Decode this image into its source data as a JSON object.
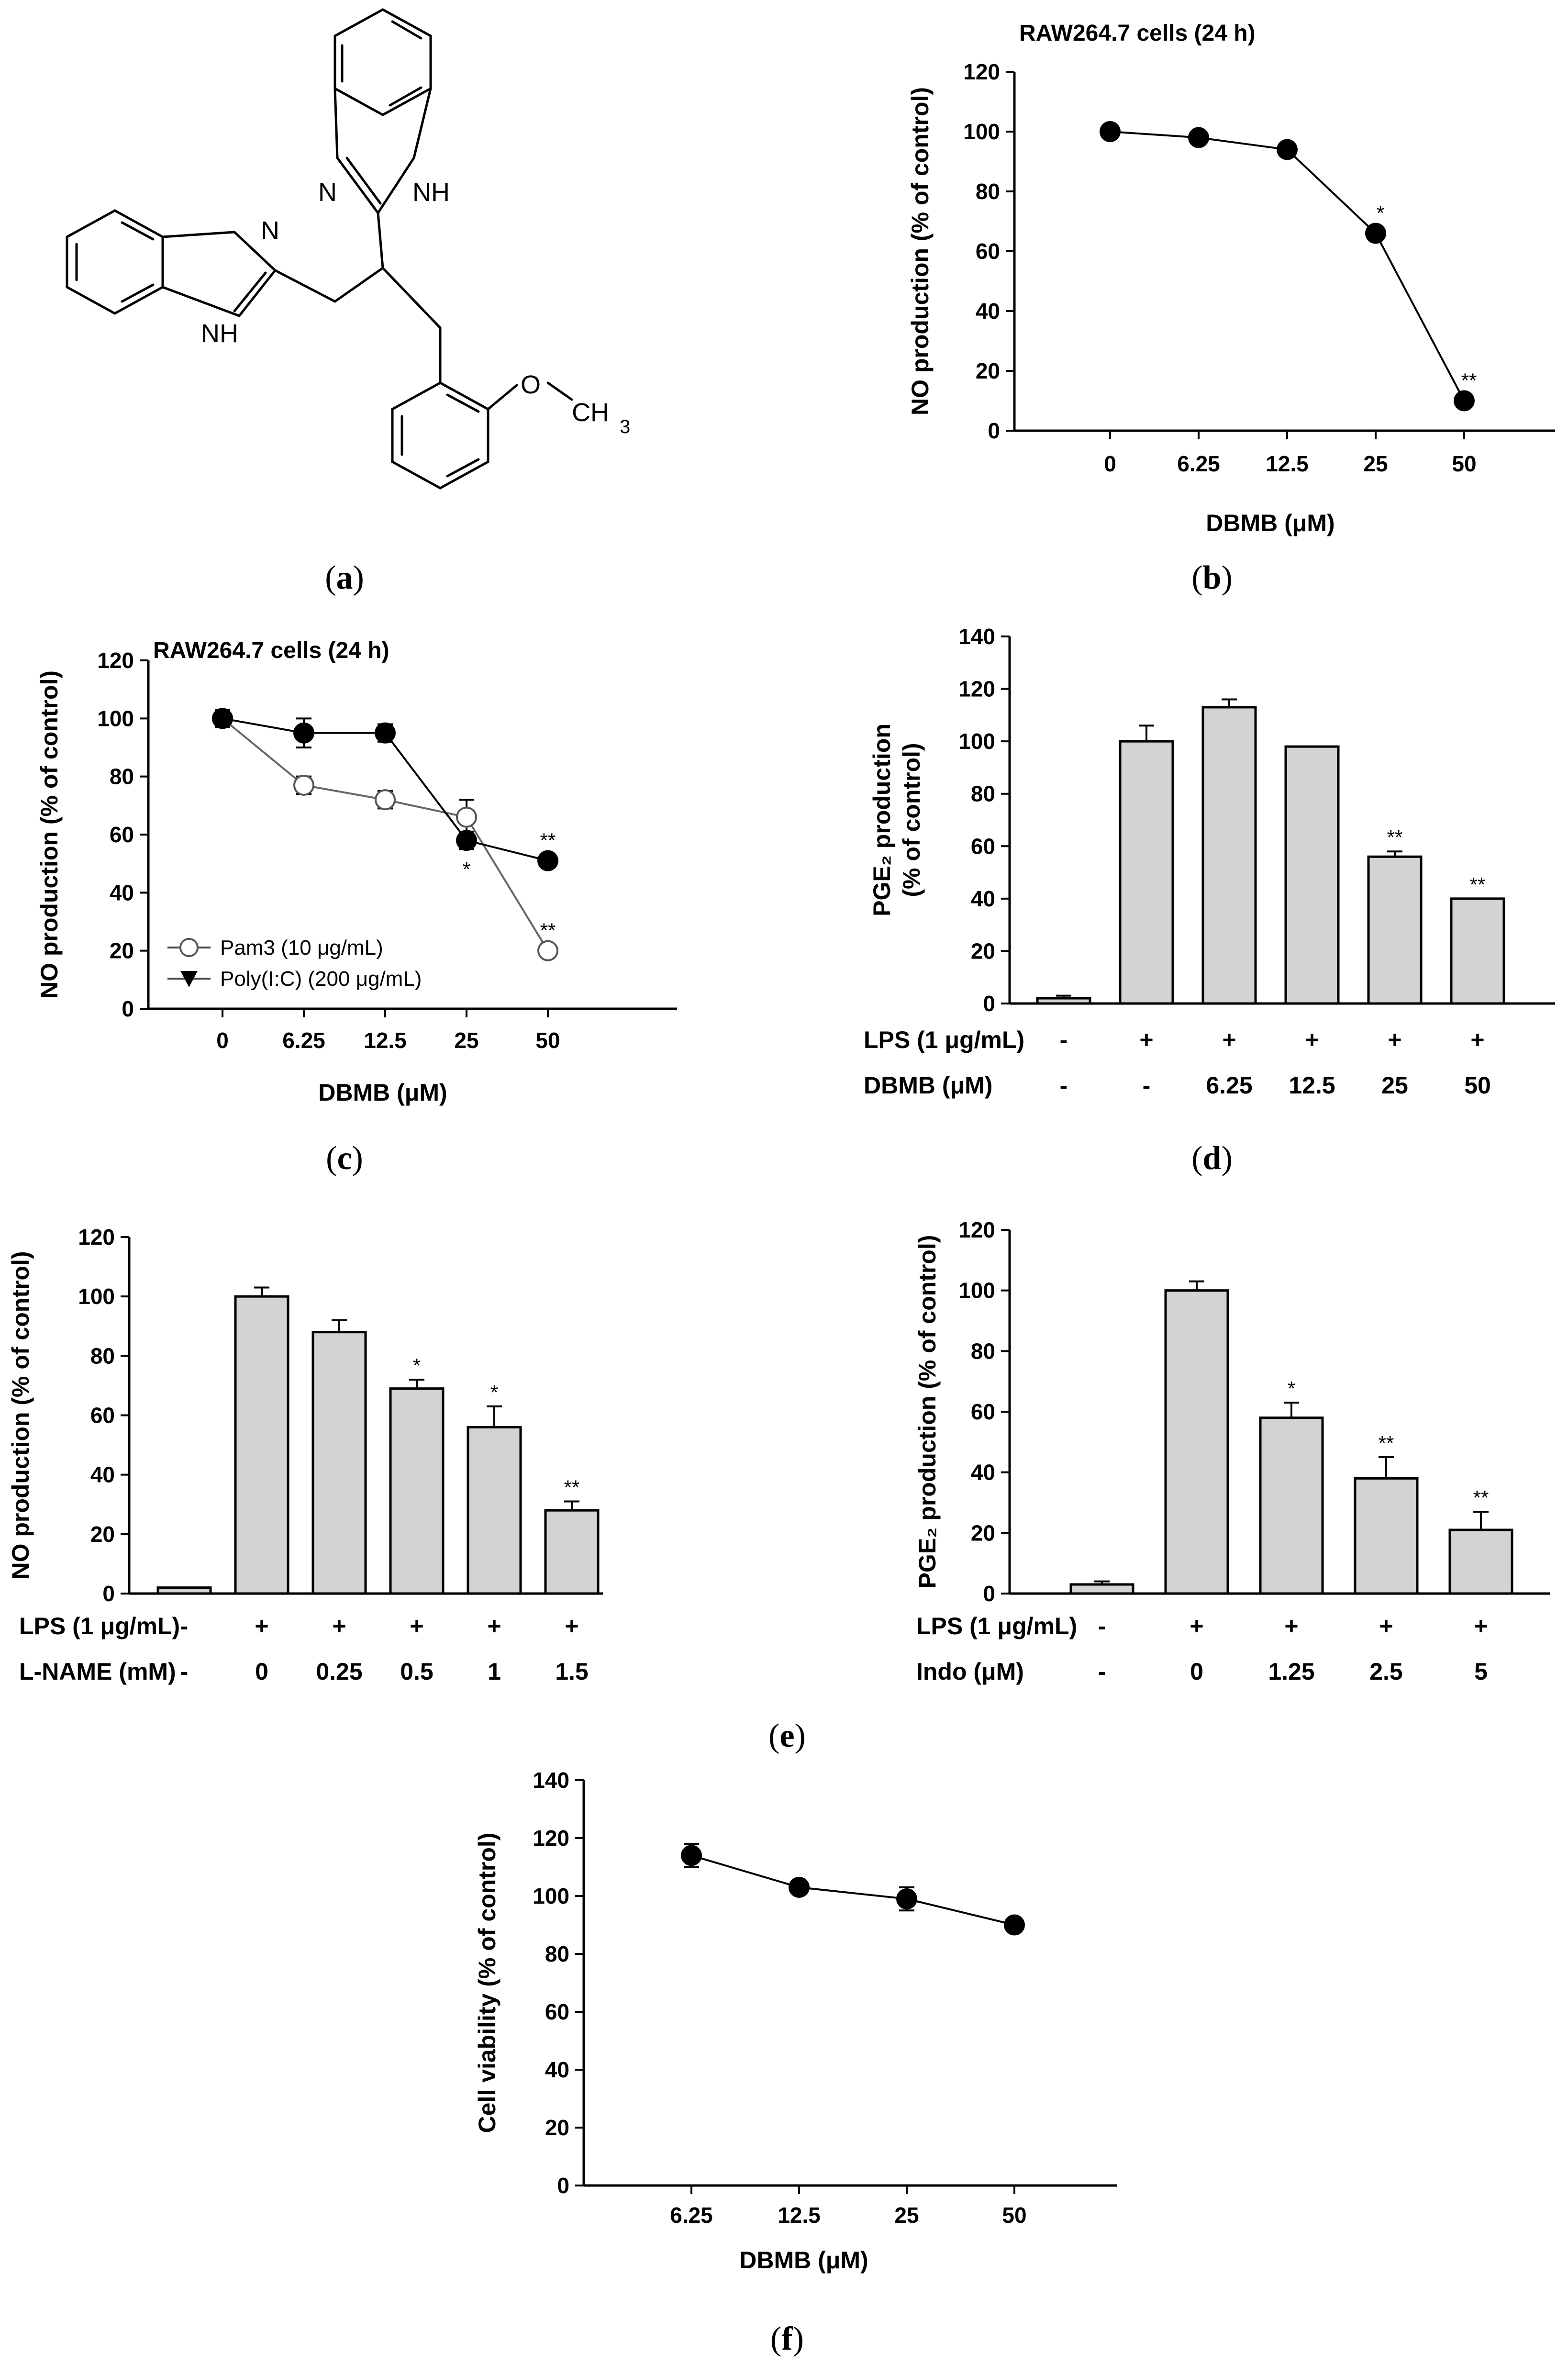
{
  "panel_letters": [
    "a",
    "b",
    "c",
    "d",
    "e",
    "f"
  ],
  "molecule": {
    "atoms": {
      "n1": "N",
      "nh1": "NH",
      "n2": "N",
      "nh2": "NH",
      "o": "O",
      "ch": "CH",
      "sub3": "3"
    }
  },
  "chart_data": [
    {
      "id": "b",
      "type": "line",
      "title": "RAW264.7 cells (24 h)",
      "xlabel": "DBMB (μM)",
      "ylabel": "NO production (% of control)",
      "categories": [
        "0",
        "6.25",
        "12.5",
        "25",
        "50"
      ],
      "ylim": [
        0,
        120
      ],
      "yticks": [
        0,
        20,
        40,
        60,
        80,
        100,
        120
      ],
      "series": [
        {
          "values": [
            100,
            98,
            94,
            66,
            10
          ]
        }
      ],
      "annotations": [
        "",
        "",
        "",
        "*",
        "**"
      ]
    },
    {
      "id": "c",
      "type": "line",
      "title": "RAW264.7 cells (24 h)",
      "xlabel": "DBMB (μM)",
      "ylabel": "NO production (% of control)",
      "categories": [
        "0",
        "6.25",
        "12.5",
        "25",
        "50"
      ],
      "ylim": [
        0,
        120
      ],
      "yticks": [
        0,
        20,
        40,
        60,
        80,
        100,
        120
      ],
      "legend_position": "bottom-left",
      "series": [
        {
          "name": "Pam3 (10 μg/mL)",
          "marker": "open-circle",
          "values": [
            100,
            77,
            72,
            66,
            20
          ],
          "errors": [
            3,
            3,
            3,
            6,
            0
          ],
          "annotations": [
            "",
            "",
            "",
            "",
            "**"
          ]
        },
        {
          "name": "Poly(I:C) (200 μg/mL)",
          "marker": "filled-circle",
          "legend_marker": "filled-triangle",
          "values": [
            100,
            95,
            95,
            58,
            51
          ],
          "errors": [
            3,
            5,
            3,
            3,
            0
          ],
          "annotations": [
            "",
            "",
            "",
            "*",
            "**"
          ]
        }
      ]
    },
    {
      "id": "d",
      "type": "bar",
      "ylabel": "PGE₂ production (% of control)",
      "ylabel_lines": [
        "PGE₂ production",
        "(% of control)"
      ],
      "ylim": [
        0,
        140
      ],
      "yticks": [
        0,
        20,
        40,
        60,
        80,
        100,
        120,
        140
      ],
      "rows": [
        {
          "label": "LPS (1 μg/mL)",
          "values": [
            "-",
            "+",
            "+",
            "+",
            "+",
            "+"
          ]
        },
        {
          "label": "DBMB (μM)",
          "values": [
            "-",
            "-",
            "6.25",
            "12.5",
            "25",
            "50"
          ]
        }
      ],
      "values": [
        2,
        100,
        113,
        98,
        56,
        40
      ],
      "errors": [
        1,
        6,
        3,
        0,
        2,
        0
      ],
      "annotations": [
        "",
        "",
        "",
        "",
        "**",
        "**"
      ]
    },
    {
      "id": "e1",
      "type": "bar",
      "ylabel": "NO production (% of control)",
      "ylim": [
        0,
        120
      ],
      "yticks": [
        0,
        20,
        40,
        60,
        80,
        100,
        120
      ],
      "rows": [
        {
          "label": "LPS (1 μg/mL)",
          "values": [
            "-",
            "+",
            "+",
            "+",
            "+",
            "+"
          ]
        },
        {
          "label": "L-NAME (mM)",
          "values": [
            "-",
            "0",
            "0.25",
            "0.5",
            "1",
            "1.5"
          ]
        }
      ],
      "values": [
        2,
        100,
        88,
        69,
        56,
        28
      ],
      "errors": [
        0,
        3,
        4,
        3,
        7,
        3
      ],
      "annotations": [
        "",
        "",
        "",
        "*",
        "*",
        "**"
      ]
    },
    {
      "id": "e2",
      "type": "bar",
      "ylabel": "PGE₂ production (% of control)",
      "ylim": [
        0,
        120
      ],
      "yticks": [
        0,
        20,
        40,
        60,
        80,
        100,
        120
      ],
      "rows": [
        {
          "label": "LPS (1 μg/mL)",
          "values": [
            "-",
            "+",
            "+",
            "+",
            "+"
          ]
        },
        {
          "label": "Indo (μM)",
          "values": [
            "-",
            "0",
            "1.25",
            "2.5",
            "5"
          ]
        }
      ],
      "values": [
        3,
        100,
        58,
        38,
        21
      ],
      "errors": [
        1,
        3,
        5,
        7,
        6
      ],
      "annotations": [
        "",
        "",
        "*",
        "**",
        "**"
      ]
    },
    {
      "id": "f",
      "type": "line",
      "xlabel": "DBMB (μM)",
      "ylabel": "Cell viability (% of control)",
      "categories": [
        "6.25",
        "12.5",
        "25",
        "50"
      ],
      "ylim": [
        0,
        140
      ],
      "yticks": [
        0,
        20,
        40,
        60,
        80,
        100,
        120,
        140
      ],
      "series": [
        {
          "values": [
            114,
            103,
            99,
            90
          ],
          "errors": [
            4,
            2,
            4,
            0
          ]
        }
      ]
    }
  ]
}
